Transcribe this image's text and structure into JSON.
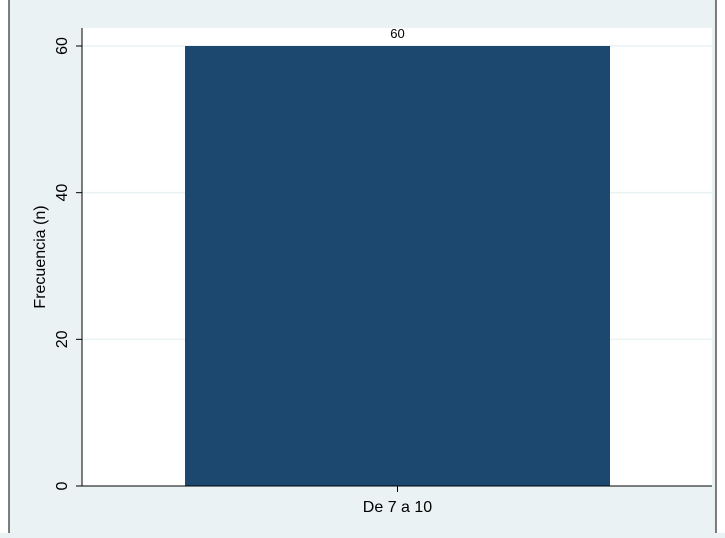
{
  "chart_data": {
    "type": "bar",
    "categories": [
      "De 7 a 10"
    ],
    "values": [
      60
    ],
    "data_labels": [
      "60"
    ],
    "title": "",
    "xlabel": "",
    "ylabel": "Frecuencia (n)",
    "ylim": [
      0,
      60
    ],
    "yticks": [
      0,
      20,
      40,
      60
    ],
    "ytick_labels": [
      "0",
      "20",
      "40",
      "60"
    ],
    "grid": true,
    "legend": "none",
    "colors": {
      "bar": "#1c4870",
      "plot_background": "#ffffff",
      "figure_background": "#eaf2f3",
      "gridline": "#eaf2f3",
      "axis": "#000000"
    }
  }
}
